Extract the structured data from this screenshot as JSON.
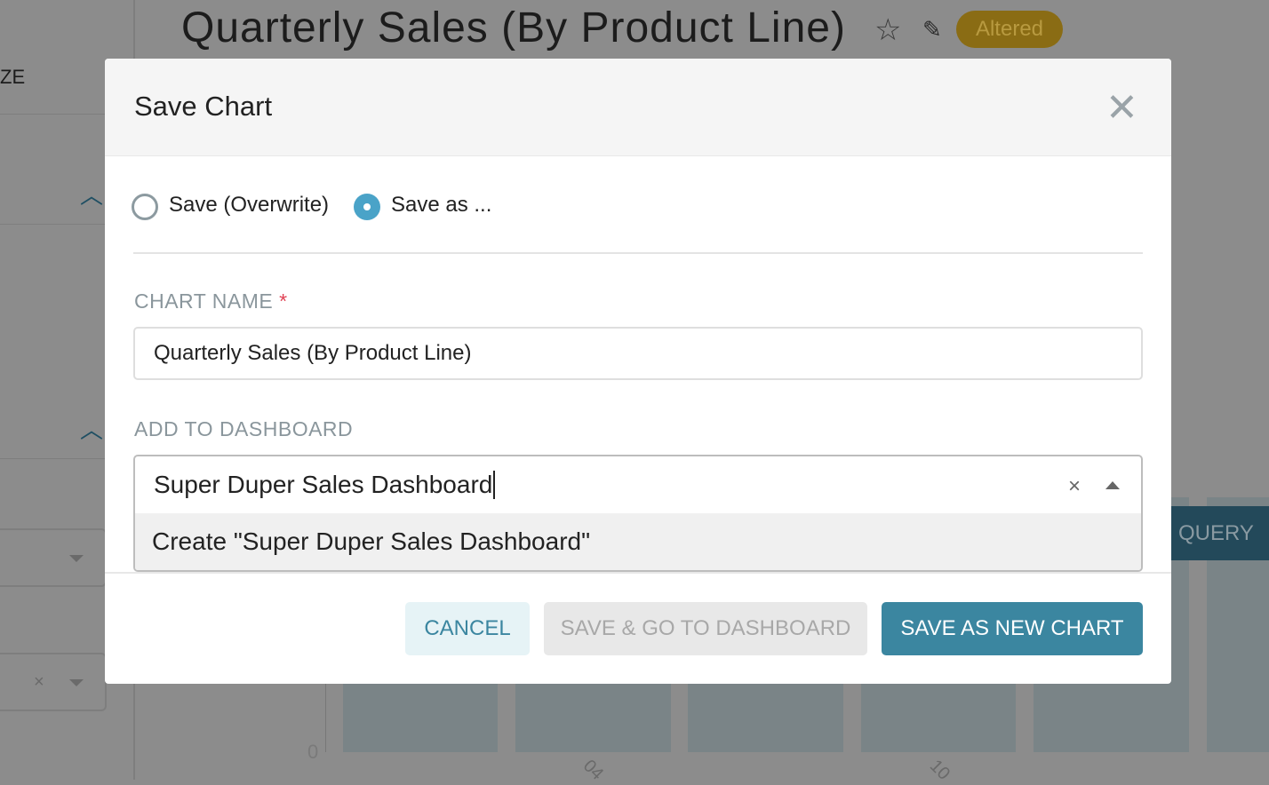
{
  "background": {
    "sidebar_label": "ZE",
    "chart_title": "Quarterly Sales (By Product Line)",
    "badge": "Altered",
    "query_button": "QUERY",
    "y_tick": "0",
    "x_ticks": [
      "04",
      "10"
    ]
  },
  "modal": {
    "title": "Save Chart",
    "radio_overwrite": "Save (Overwrite)",
    "radio_save_as": "Save as ...",
    "selected_mode": "save_as",
    "chart_name_label": "CHART NAME",
    "required_mark": "*",
    "chart_name_value": "Quarterly Sales (By Product Line)",
    "dashboard_label": "ADD TO DASHBOARD",
    "dashboard_value": "Super Duper Sales Dashboard",
    "dashboard_option": "Create \"Super Duper Sales Dashboard\"",
    "cancel": "CANCEL",
    "save_go": "SAVE & GO TO DASHBOARD",
    "save_new": "SAVE AS NEW CHART"
  },
  "colors": {
    "primary": "#3b86a0",
    "radio": "#4aa3c8",
    "required": "#e04355"
  }
}
